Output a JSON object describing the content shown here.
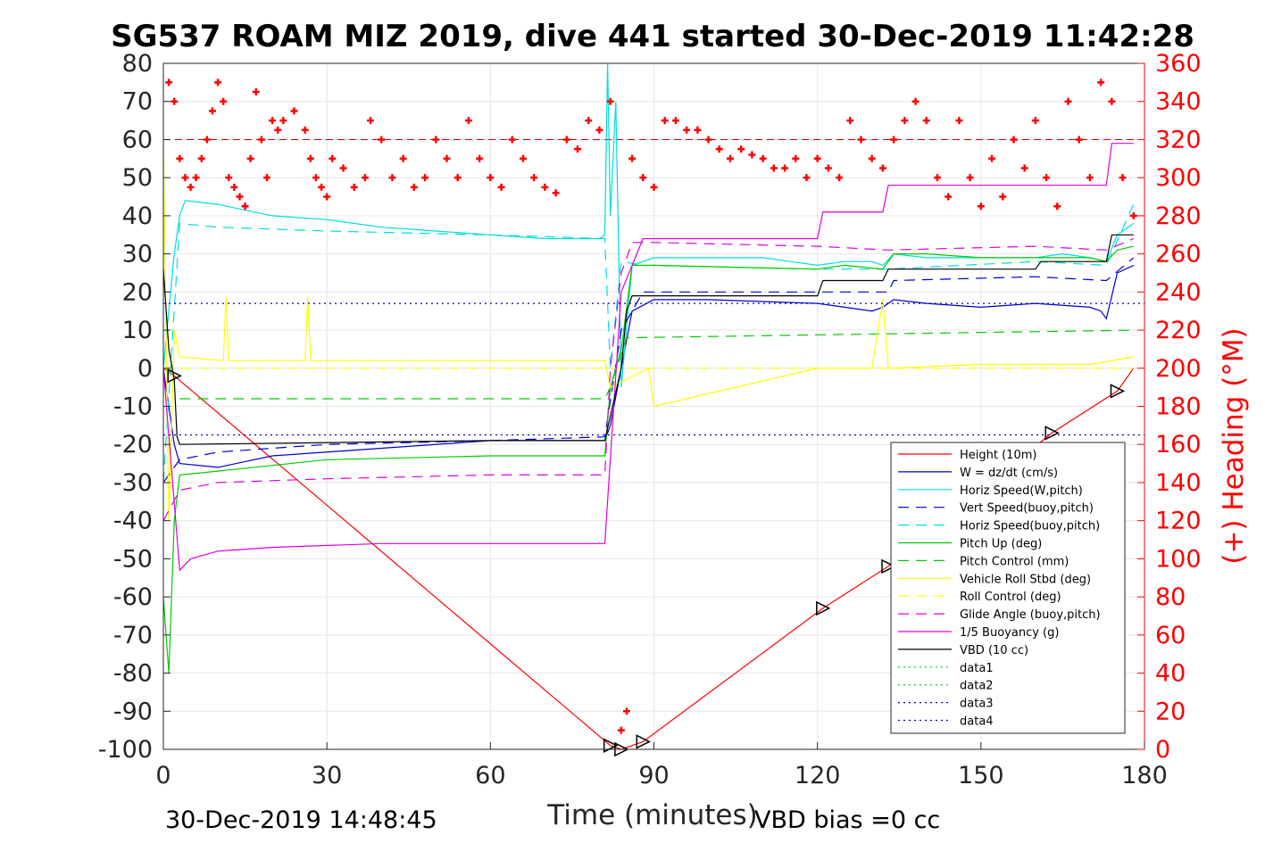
{
  "chart_data": {
    "type": "line",
    "title": "SG537 ROAM MIZ 2019, dive 441 started 30-Dec-2019 11:42:28",
    "xlabel": "Time (minutes)",
    "ylabel": "",
    "ylabel_right": "(+) Heading (°M)",
    "xlim": [
      0,
      180
    ],
    "ylim": [
      -100,
      80
    ],
    "ylim_right": [
      0,
      360
    ],
    "x_ticks": [
      0,
      30,
      60,
      90,
      120,
      150,
      180
    ],
    "y_ticks": [
      80,
      70,
      60,
      50,
      40,
      30,
      20,
      10,
      0,
      -10,
      -20,
      -30,
      -40,
      -50,
      -60,
      -70,
      -80,
      -90,
      -100
    ],
    "y_right_ticks": [
      360,
      340,
      320,
      300,
      280,
      260,
      240,
      220,
      200,
      180,
      160,
      140,
      120,
      100,
      80,
      60,
      40,
      20,
      0
    ],
    "grid": true,
    "legend_position": "bottom-right",
    "footer_left": "30-Dec-2019 14:48:45",
    "footer_right": "VBD bias =0 cc",
    "series": [
      {
        "name": "Height (10m)",
        "color": "#ff0000",
        "style": "solid",
        "x": [
          0,
          2,
          82,
          84,
          88,
          121,
          133,
          163,
          175,
          178
        ],
        "y": [
          0,
          -2,
          -99,
          -100,
          -98,
          -63,
          -52,
          -17,
          -6,
          0
        ]
      },
      {
        "name": "W = dz/dt (cm/s)",
        "color": "#0000cc",
        "style": "solid",
        "x": [
          0,
          2,
          3,
          10,
          20,
          40,
          60,
          70,
          81,
          82,
          84,
          86,
          90,
          100,
          120,
          125,
          130,
          132,
          134,
          140,
          150,
          160,
          170,
          172,
          173,
          175,
          178
        ],
        "y": [
          0,
          -20,
          -25,
          -26,
          -23,
          -21,
          -19,
          -19,
          -19,
          -15,
          0,
          15,
          18,
          18,
          17,
          16,
          15,
          16,
          18,
          17,
          16,
          17,
          16,
          15,
          13,
          25,
          27
        ]
      },
      {
        "name": "Horiz Speed(W,pitch)",
        "color": "#00dddd",
        "style": "solid",
        "x": [
          0,
          2,
          3,
          4,
          10,
          20,
          30,
          40,
          50,
          60,
          70,
          80,
          81,
          81.5,
          82,
          83,
          84,
          86,
          90,
          100,
          110,
          120,
          125,
          130,
          132,
          134,
          140,
          150,
          160,
          165,
          170,
          173,
          175,
          178
        ],
        "y": [
          0,
          30,
          40,
          44,
          43,
          40,
          39,
          37,
          36,
          35,
          34,
          34,
          35,
          80,
          40,
          70,
          -5,
          27,
          29,
          29,
          29,
          27,
          28,
          28,
          27,
          30,
          29,
          29,
          29,
          30,
          29,
          28,
          35,
          38
        ]
      },
      {
        "name": "Vert Speed(buoy,pitch)",
        "color": "#0000cc",
        "style": "dashed",
        "x": [
          0,
          3,
          10,
          30,
          60,
          81,
          84,
          88,
          120,
          133,
          134,
          160,
          173,
          178
        ],
        "y": [
          -30,
          -24,
          -22,
          -20,
          -19,
          -18,
          10,
          20,
          20,
          20,
          23,
          24,
          23,
          29
        ]
      },
      {
        "name": "Horiz Speed(buoy,pitch)",
        "color": "#00dddd",
        "style": "dashed",
        "x": [
          0,
          3,
          10,
          30,
          60,
          81,
          82,
          84,
          88,
          120,
          133,
          160,
          173,
          178
        ],
        "y": [
          -30,
          38,
          37,
          36,
          35,
          34,
          0,
          28,
          27,
          26,
          26,
          28,
          27,
          43
        ]
      },
      {
        "name": "Pitch Up (deg)",
        "color": "#00cc00",
        "style": "solid",
        "x": [
          0,
          1,
          2,
          3,
          10,
          30,
          60,
          81,
          82,
          84,
          86,
          90,
          120,
          125,
          132,
          134,
          140,
          150,
          160,
          170,
          173,
          175,
          178
        ],
        "y": [
          -60,
          -80,
          -40,
          -28,
          -27,
          -24,
          -23,
          -23,
          -5,
          5,
          27,
          27,
          26,
          27,
          26,
          30,
          30,
          29,
          29,
          29,
          28,
          31,
          32
        ]
      },
      {
        "name": "Pitch Control (mm)",
        "color": "#00cc00",
        "style": "dashed",
        "x": [
          3,
          81,
          82,
          85,
          178
        ],
        "y": [
          -8,
          -8,
          -5,
          8,
          10
        ]
      },
      {
        "name": "Vehicle Roll Stbd (deg)",
        "color": "#ffff00",
        "style": "solid",
        "x": [
          0,
          1,
          2,
          3,
          11,
          11.5,
          12,
          26,
          26.5,
          27,
          38,
          60,
          81,
          82,
          89,
          90,
          120,
          130,
          132,
          133,
          150,
          170,
          178
        ],
        "y": [
          60,
          -40,
          10,
          3,
          2,
          19,
          2,
          2,
          19,
          2,
          2,
          2,
          2,
          -5,
          0,
          -10,
          0,
          0,
          18,
          0,
          1,
          1,
          3
        ]
      },
      {
        "name": "Roll Control (deg)",
        "color": "#ffff00",
        "style": "dashed",
        "x": [
          0,
          178
        ],
        "y": [
          0,
          0
        ]
      },
      {
        "name": "Glide Angle (buoy,pitch)",
        "color": "#dd00dd",
        "style": "dashed",
        "x": [
          0,
          3,
          10,
          30,
          60,
          81,
          82,
          84,
          86,
          90,
          120,
          133,
          160,
          173,
          178
        ],
        "y": [
          -40,
          -32,
          -30,
          -29,
          -28,
          -28,
          0,
          25,
          33,
          33,
          32,
          31,
          32,
          31,
          34
        ]
      },
      {
        "name": "1/5 Buoyancy (g)",
        "color": "#dd00dd",
        "style": "solid",
        "x": [
          0,
          3,
          5,
          10,
          20,
          40,
          60,
          81,
          84,
          88,
          120,
          121,
          132,
          133,
          173,
          174,
          178
        ],
        "y": [
          0,
          -53,
          -50,
          -48,
          -47,
          -46,
          -46,
          -46,
          20,
          34,
          34,
          41,
          41,
          48,
          48,
          59,
          59
        ]
      },
      {
        "name": "VBD (10 cc)",
        "color": "#000000",
        "style": "solid",
        "x": [
          0,
          1,
          2,
          2.5,
          3,
          60,
          81,
          84,
          85,
          86,
          120,
          121,
          132,
          133,
          160,
          161,
          173,
          174,
          178
        ],
        "y": [
          26,
          5,
          -3,
          -18,
          -20,
          -19,
          -19,
          0,
          15,
          19,
          19,
          23,
          23,
          26,
          26,
          28,
          28,
          35,
          35
        ]
      },
      {
        "name": "data1",
        "color": "#00cc00",
        "style": "dotted",
        "x": [
          0,
          0
        ],
        "y": [
          0,
          0
        ]
      },
      {
        "name": "data2",
        "color": "#00cc00",
        "style": "dotted",
        "x": [
          0,
          0
        ],
        "y": [
          0,
          0
        ]
      },
      {
        "name": "data3",
        "color": "#0000cc",
        "style": "dotted",
        "x": [
          0,
          180
        ],
        "y": [
          17,
          17
        ]
      },
      {
        "name": "data4",
        "color": "#0000cc",
        "style": "dotted",
        "x": [
          0,
          180
        ],
        "y": [
          -17.5,
          -17.5
        ]
      }
    ],
    "heading_series": {
      "name": "(+) Heading",
      "color": "#ff0000",
      "marker": "+",
      "reference_heading": 320,
      "x": [
        1,
        2,
        3,
        4,
        5,
        6,
        7,
        8,
        9,
        10,
        11,
        12,
        13,
        14,
        15,
        16,
        17,
        18,
        19,
        20,
        21,
        22,
        24,
        26,
        27,
        28,
        29,
        30,
        31,
        33,
        35,
        37,
        38,
        40,
        42,
        44,
        46,
        48,
        50,
        52,
        54,
        56,
        58,
        60,
        62,
        64,
        66,
        68,
        70,
        72,
        74,
        76,
        78,
        80,
        82,
        84,
        85,
        86,
        88,
        90,
        92,
        94,
        96,
        98,
        100,
        102,
        104,
        106,
        108,
        110,
        112,
        114,
        116,
        118,
        120,
        122,
        124,
        126,
        128,
        130,
        132,
        134,
        136,
        138,
        140,
        142,
        144,
        146,
        148,
        150,
        152,
        154,
        156,
        158,
        160,
        162,
        164,
        166,
        168,
        170,
        172,
        174,
        176,
        178
      ],
      "y": [
        350,
        340,
        310,
        300,
        295,
        300,
        310,
        320,
        335,
        350,
        340,
        300,
        295,
        290,
        285,
        310,
        345,
        320,
        300,
        330,
        325,
        330,
        335,
        325,
        310,
        300,
        295,
        290,
        310,
        305,
        295,
        300,
        330,
        320,
        300,
        310,
        295,
        300,
        320,
        310,
        300,
        330,
        310,
        300,
        295,
        320,
        310,
        300,
        295,
        292,
        320,
        315,
        330,
        325,
        340,
        10,
        20,
        310,
        300,
        295,
        330,
        330,
        325,
        325,
        320,
        315,
        310,
        315,
        312,
        310,
        305,
        305,
        310,
        300,
        310,
        305,
        300,
        330,
        320,
        310,
        305,
        320,
        330,
        340,
        330,
        300,
        290,
        330,
        300,
        285,
        310,
        290,
        320,
        305,
        330,
        300,
        285,
        340,
        320,
        300,
        350,
        340,
        300,
        280
      ]
    }
  }
}
